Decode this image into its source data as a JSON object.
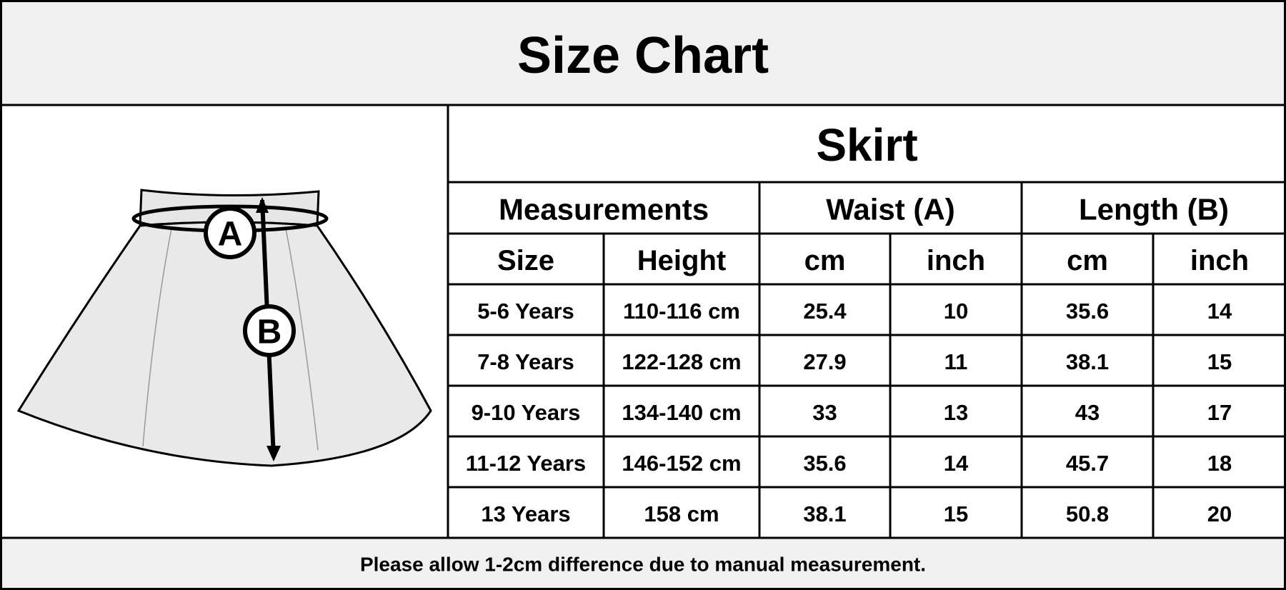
{
  "header": {
    "title": "Size Chart"
  },
  "diagram": {
    "labels": [
      "A",
      "B"
    ]
  },
  "table": {
    "title": "Skirt",
    "group_headers": [
      "Measurements",
      "Waist (A)",
      "Length (B)"
    ],
    "columns": [
      "Size",
      "Height",
      "cm",
      "inch",
      "cm",
      "inch"
    ],
    "rows": [
      [
        "5-6 Years",
        "110-116 cm",
        25.4,
        10,
        35.6,
        14
      ],
      [
        "7-8 Years",
        "122-128 cm",
        27.9,
        11,
        38.1,
        15
      ],
      [
        "9-10 Years",
        "134-140 cm",
        33,
        13,
        43,
        17
      ],
      [
        "11-12 Years",
        "146-152 cm",
        35.6,
        14,
        45.7,
        18
      ],
      [
        "13 Years",
        "158 cm",
        38.1,
        15,
        50.8,
        20
      ]
    ]
  },
  "footer": {
    "note": "Please allow 1-2cm difference due to manual measurement."
  }
}
